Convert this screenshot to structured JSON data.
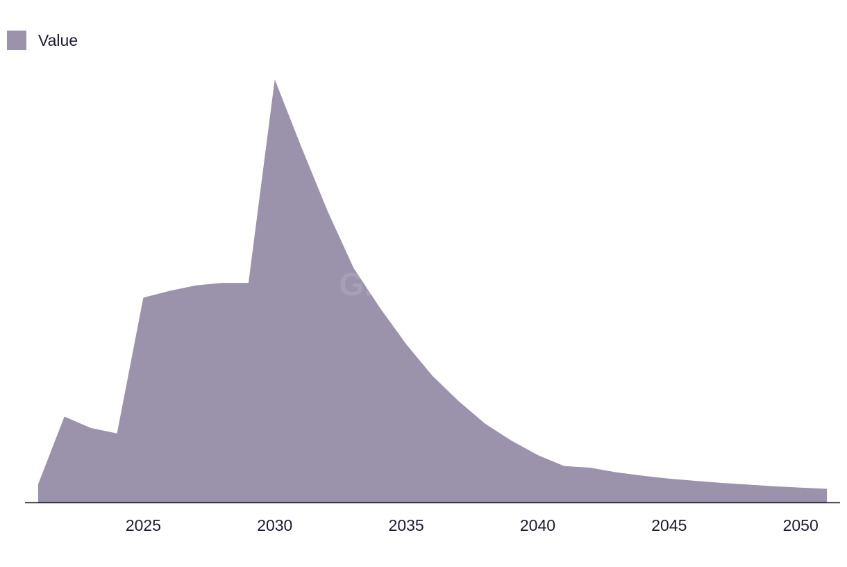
{
  "chart_data": {
    "type": "area",
    "title": "",
    "xlabel": "",
    "ylabel": "",
    "legend": {
      "position": "top-left",
      "entries": [
        "Value"
      ]
    },
    "grid": false,
    "series": [
      {
        "name": "Value",
        "color": "#9b92ab",
        "x": [
          2021,
          2022,
          2023,
          2024,
          2025,
          2026,
          2027,
          2028,
          2029,
          2030,
          2031,
          2032,
          2033,
          2034,
          2035,
          2036,
          2037,
          2038,
          2039,
          2040,
          2041,
          2042,
          2043,
          2044,
          2045,
          2046,
          2047,
          2048,
          2049,
          2050,
          2051
        ],
        "values": [
          4.3,
          20.3,
          17.6,
          16.3,
          48.4,
          50.0,
          51.3,
          51.9,
          51.9,
          100.0,
          84.2,
          69.0,
          55.4,
          46.0,
          37.4,
          29.9,
          23.9,
          18.6,
          14.6,
          11.2,
          8.6,
          8.2,
          7.1,
          6.3,
          5.6,
          5.1,
          4.6,
          4.2,
          3.8,
          3.5,
          3.2
        ]
      }
    ],
    "xticks": [
      "2025",
      "2030",
      "2035",
      "2040",
      "2045",
      "2050"
    ],
    "xlim": [
      2020.5,
      2051.5
    ],
    "ylim": [
      0,
      104
    ],
    "watermark": "GlobalData"
  }
}
